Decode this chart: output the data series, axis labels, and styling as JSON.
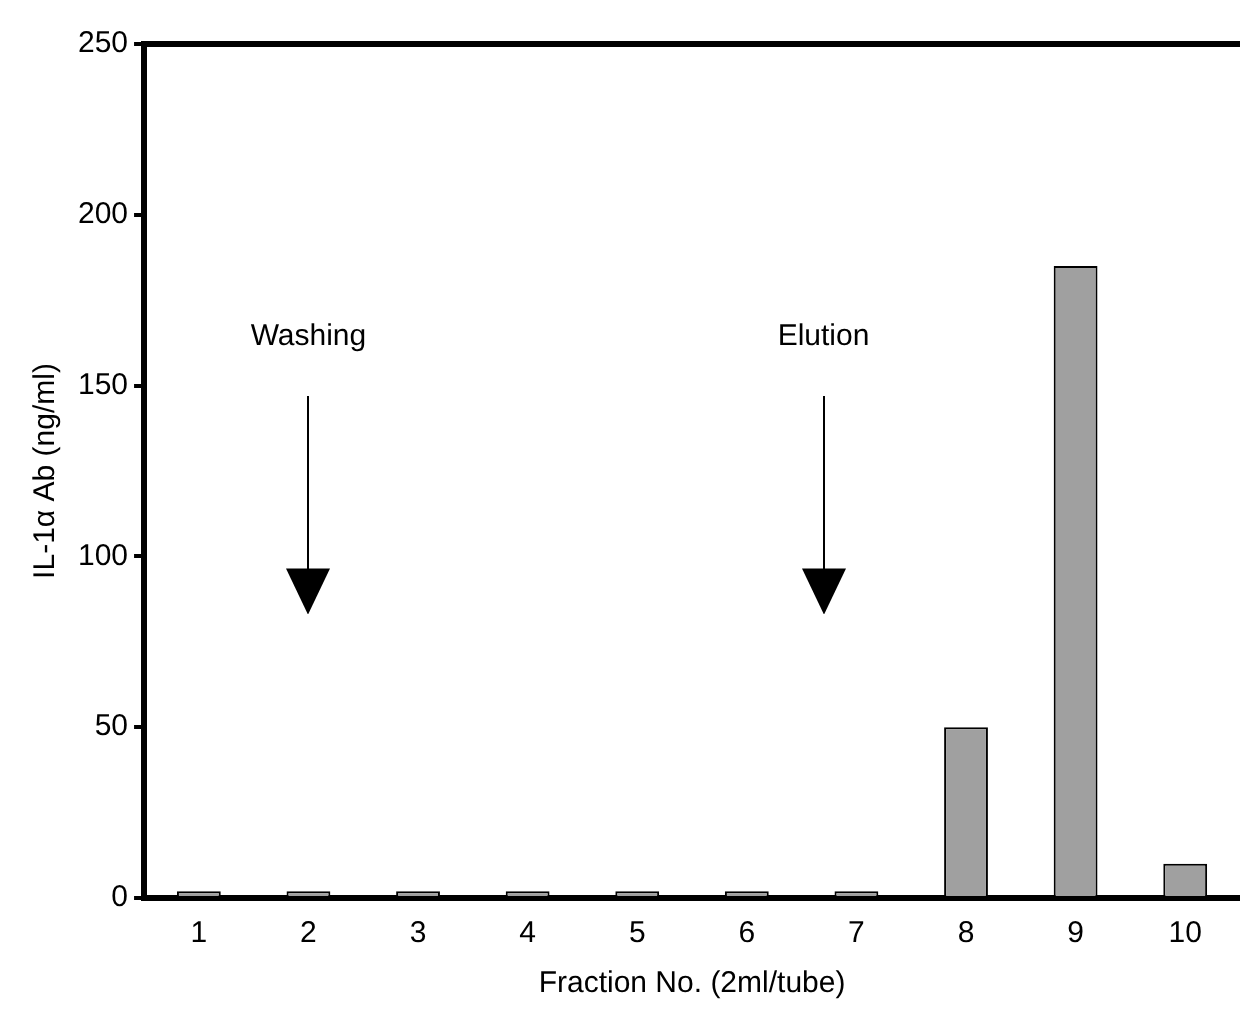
{
  "chart_data": {
    "type": "bar",
    "xlabel": "Fraction No. (2ml/tube)",
    "ylabel": "IL-1α Ab (ng/ml)",
    "categories": [
      "1",
      "2",
      "3",
      "4",
      "5",
      "6",
      "7",
      "8",
      "9",
      "10"
    ],
    "values": [
      2,
      2,
      2,
      2,
      2,
      2,
      2,
      50,
      185,
      10
    ],
    "color": "#a0a0a0",
    "ylim": [
      0,
      250
    ],
    "yticks": [
      0,
      50,
      100,
      150,
      200,
      250
    ],
    "grid": false,
    "legend": false,
    "annotations": [
      "Washing",
      "Elution"
    ]
  }
}
